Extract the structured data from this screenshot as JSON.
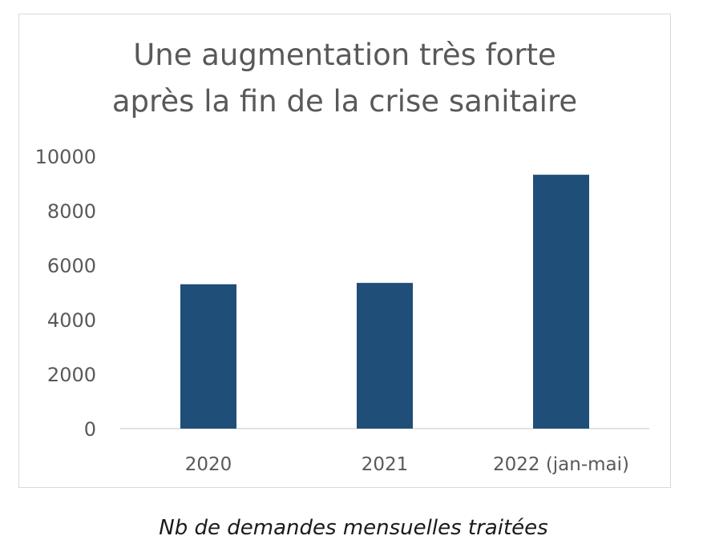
{
  "chart_data": {
    "type": "bar",
    "title_lines": [
      "Une augmentation très forte",
      "après la fin de la crise sanitaire"
    ],
    "categories": [
      "2020",
      "2021",
      "2022 (jan-mai)"
    ],
    "values": [
      5300,
      5350,
      9320
    ],
    "ylim": [
      0,
      10000
    ],
    "yticks": [
      "0",
      "2000",
      "4000",
      "6000",
      "8000",
      "10000"
    ],
    "grid": false,
    "bar_color": "#1f4e79",
    "axis_color": "#d9d9d9",
    "label_color": "#595959"
  },
  "caption": "Nb de demandes mensuelles traitées"
}
